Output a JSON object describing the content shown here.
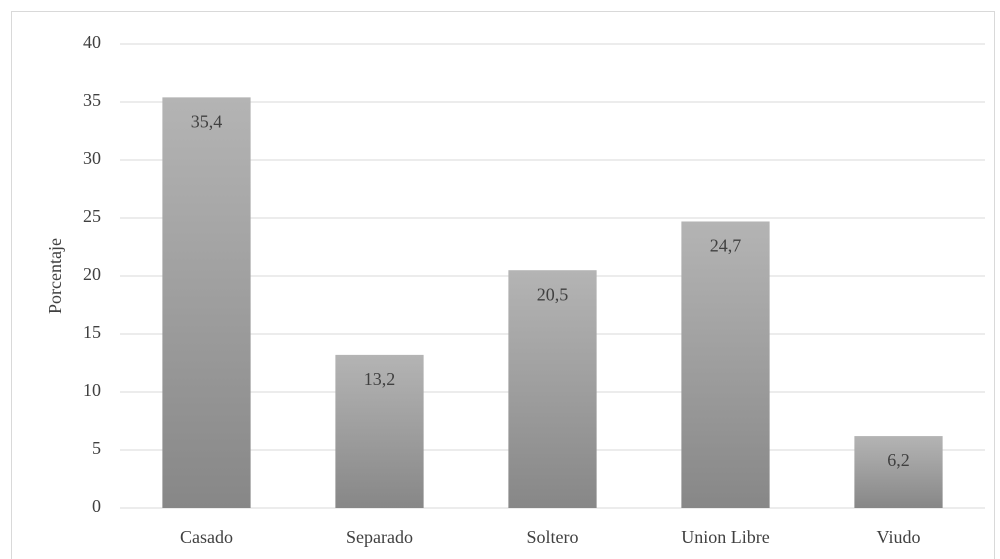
{
  "chart_data": {
    "type": "bar",
    "y_label": "Porcentaje",
    "categories": [
      "Casado",
      "Separado",
      "Soltero",
      "Union Libre",
      "Viudo"
    ],
    "values": [
      35.4,
      13.2,
      20.5,
      24.7,
      6.2
    ],
    "value_labels": [
      "35,4",
      "13,2",
      "20,5",
      "24,7",
      "6,2"
    ],
    "color": "#9e9e9e",
    "ylim": [
      0,
      40
    ],
    "yticks": [
      0,
      5,
      10,
      15,
      20,
      25,
      30,
      35,
      40
    ],
    "grid": true
  }
}
